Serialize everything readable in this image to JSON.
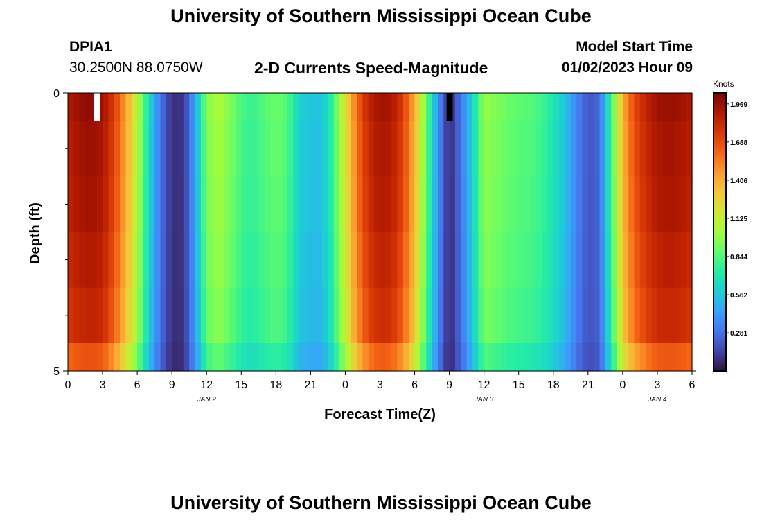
{
  "page": {
    "title_top": "University of Southern Mississippi Ocean Cube",
    "title_bottom": "University of Southern Mississippi Ocean Cube",
    "station": "DPIA1",
    "coords": "30.2500N  88.0750W",
    "subtitle": "2-D Currents Speed-Magnitude",
    "model_label": "Model Start Time",
    "model_time": "01/02/2023 Hour 09"
  },
  "chart_data": {
    "type": "heatmap",
    "title": "2-D Currents Speed-Magnitude",
    "xlabel": "Forecast Time(Z)",
    "ylabel": "Depth (ft)",
    "x_hours_start": 0,
    "x_hours_end": 54,
    "x_ticks": [
      {
        "hour": 0,
        "label": "0"
      },
      {
        "hour": 3,
        "label": "3"
      },
      {
        "hour": 6,
        "label": "6"
      },
      {
        "hour": 9,
        "label": "9"
      },
      {
        "hour": 12,
        "label": "12"
      },
      {
        "hour": 15,
        "label": "15"
      },
      {
        "hour": 18,
        "label": "18"
      },
      {
        "hour": 21,
        "label": "21"
      },
      {
        "hour": 24,
        "label": "0"
      },
      {
        "hour": 27,
        "label": "3"
      },
      {
        "hour": 30,
        "label": "6"
      },
      {
        "hour": 33,
        "label": "9"
      },
      {
        "hour": 36,
        "label": "12"
      },
      {
        "hour": 39,
        "label": "15"
      },
      {
        "hour": 42,
        "label": "18"
      },
      {
        "hour": 45,
        "label": "21"
      },
      {
        "hour": 48,
        "label": "0"
      },
      {
        "hour": 51,
        "label": "3"
      },
      {
        "hour": 54,
        "label": "6"
      }
    ],
    "date_labels": [
      {
        "hour": 12,
        "label": "JAN 2"
      },
      {
        "hour": 36,
        "label": "JAN 3"
      },
      {
        "hour": 51,
        "label": "JAN 4"
      }
    ],
    "y_ticks": [
      {
        "depth": 0,
        "label": "0"
      },
      {
        "depth": 5,
        "label": "5"
      }
    ],
    "y_minor_depths": [
      0.5,
      1,
      1.5,
      2,
      2.5,
      3,
      3.5,
      4,
      4.5
    ],
    "ylim": [
      0,
      5
    ],
    "depth_levels": [
      0.25,
      1,
      2,
      3,
      4,
      4.75
    ],
    "depth_level_bounds": [
      0,
      0.5,
      1.5,
      2.5,
      3.5,
      4.5,
      5
    ],
    "depth_factors": [
      1.0,
      0.985,
      0.975,
      0.955,
      0.93,
      0.84
    ],
    "speed_profile": [
      {
        "hour": 0,
        "speed": 1.9
      },
      {
        "hour": 1,
        "speed": 1.97
      },
      {
        "hour": 2,
        "speed": 2.0
      },
      {
        "hour": 3,
        "speed": 1.95
      },
      {
        "hour": 4,
        "speed": 1.75
      },
      {
        "hour": 5,
        "speed": 1.45
      },
      {
        "hour": 6,
        "speed": 1.1
      },
      {
        "hour": 7,
        "speed": 0.65
      },
      {
        "hour": 8,
        "speed": 0.3
      },
      {
        "hour": 9,
        "speed": 0.08
      },
      {
        "hour": 10,
        "speed": 0.1
      },
      {
        "hour": 11,
        "speed": 0.45
      },
      {
        "hour": 12,
        "speed": 0.95
      },
      {
        "hour": 13,
        "speed": 1.05
      },
      {
        "hour": 14,
        "speed": 0.95
      },
      {
        "hour": 15,
        "speed": 0.82
      },
      {
        "hour": 16,
        "speed": 0.78
      },
      {
        "hour": 17,
        "speed": 0.85
      },
      {
        "hour": 18,
        "speed": 0.9
      },
      {
        "hour": 19,
        "speed": 0.85
      },
      {
        "hour": 20,
        "speed": 0.6
      },
      {
        "hour": 21,
        "speed": 0.55
      },
      {
        "hour": 22,
        "speed": 0.55
      },
      {
        "hour": 23,
        "speed": 0.8
      },
      {
        "hour": 24,
        "speed": 1.2
      },
      {
        "hour": 25,
        "speed": 1.6
      },
      {
        "hour": 26,
        "speed": 1.85
      },
      {
        "hour": 27,
        "speed": 1.95
      },
      {
        "hour": 28,
        "speed": 1.92
      },
      {
        "hour": 29,
        "speed": 1.75
      },
      {
        "hour": 30,
        "speed": 1.4
      },
      {
        "hour": 31,
        "speed": 0.9
      },
      {
        "hour": 32,
        "speed": 0.4
      },
      {
        "hour": 33,
        "speed": 0.05
      },
      {
        "hour": 34,
        "speed": 0.3
      },
      {
        "hour": 35,
        "speed": 0.6
      },
      {
        "hour": 36,
        "speed": 1.0
      },
      {
        "hour": 37,
        "speed": 0.95
      },
      {
        "hour": 38,
        "speed": 0.9
      },
      {
        "hour": 39,
        "speed": 0.87
      },
      {
        "hour": 40,
        "speed": 0.85
      },
      {
        "hour": 41,
        "speed": 0.8
      },
      {
        "hour": 42,
        "speed": 0.7
      },
      {
        "hour": 43,
        "speed": 0.55
      },
      {
        "hour": 44,
        "speed": 0.35
      },
      {
        "hour": 45,
        "speed": 0.2
      },
      {
        "hour": 46,
        "speed": 0.25
      },
      {
        "hour": 47,
        "speed": 0.8
      },
      {
        "hour": 48,
        "speed": 1.4
      },
      {
        "hour": 49,
        "speed": 1.7
      },
      {
        "hour": 50,
        "speed": 1.85
      },
      {
        "hour": 51,
        "speed": 1.95
      },
      {
        "hour": 52,
        "speed": 1.97
      },
      {
        "hour": 53,
        "speed": 1.95
      },
      {
        "hour": 54,
        "speed": 1.9
      }
    ],
    "markers": [
      {
        "hour": 2.5,
        "depth_from": 0,
        "depth_to": 0.5,
        "color": "#ffffff"
      },
      {
        "hour": 33,
        "depth_from": 0,
        "depth_to": 0.5,
        "color": "#000000"
      }
    ],
    "colorbar": {
      "title": "Knots",
      "min": 0,
      "max": 2.05,
      "ticks": [
        "1.969",
        "1.688",
        "1.406",
        "1.125",
        "0.844",
        "0.562",
        "0.281"
      ],
      "colors": [
        "#30123b",
        "#4145ab",
        "#4675ed",
        "#39a2fc",
        "#1bcfd4",
        "#24eca6",
        "#61fc6c",
        "#a4fc3b",
        "#d1e834",
        "#f3c63a",
        "#fe9b2d",
        "#f36315",
        "#d93806",
        "#b11901",
        "#7a0402"
      ]
    }
  }
}
